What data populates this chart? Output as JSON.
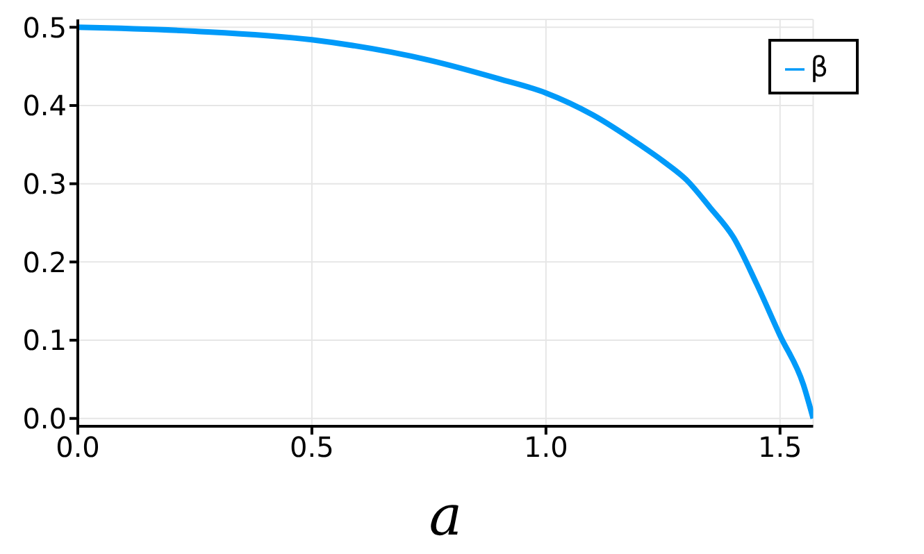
{
  "chart_data": {
    "type": "line",
    "xlabel": "a",
    "x": [
      0,
      0.25,
      0.5,
      0.75,
      0.9,
      1.0,
      1.1,
      1.2,
      1.25,
      1.3,
      1.35,
      1.4,
      1.45,
      1.5,
      1.55,
      1.5708
    ],
    "series": [
      {
        "name": "β",
        "color": "#009af9",
        "values": [
          0.5,
          0.495,
          0.484,
          0.458,
          0.434,
          0.416,
          0.388,
          0.35,
          0.329,
          0.305,
          0.27,
          0.232,
          0.172,
          0.106,
          0.043,
          0
        ]
      }
    ],
    "xlim": [
      0,
      1.5708
    ],
    "xticks": [
      {
        "value": 0,
        "label": "0.0"
      },
      0.5,
      {
        "value": 1,
        "label": "1.0"
      },
      1.5
    ],
    "ylim": [
      -0.01,
      0.51
    ],
    "yticks": [
      {
        "value": 0,
        "label": "0.0"
      },
      0.1,
      0.2,
      0.3,
      0.4,
      0.5
    ],
    "grid": true,
    "legend": "top right",
    "marker": "none",
    "line_style": "solid"
  }
}
